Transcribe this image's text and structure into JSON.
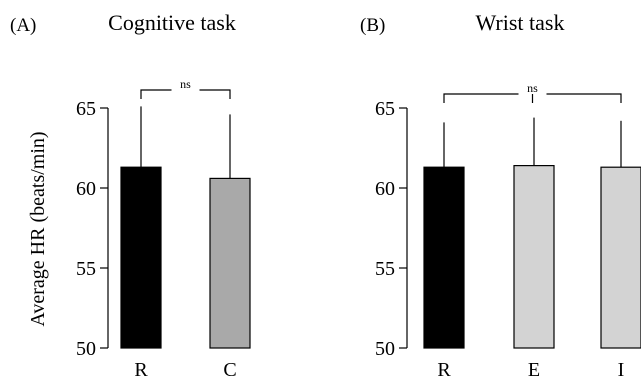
{
  "ylabel": "Average HR (beats/min)",
  "panels": [
    {
      "panel_label": "(A)",
      "title": "Cognitive task",
      "significance": "ns"
    },
    {
      "panel_label": "(B)",
      "title": "Wrist task",
      "significance": "ns"
    }
  ],
  "chart_data": [
    {
      "type": "bar",
      "title": "Cognitive task",
      "ylabel": "Average HR (beats/min)",
      "ylim": [
        50,
        65
      ],
      "yticks": [
        50,
        55,
        60,
        65
      ],
      "categories": [
        "R",
        "C"
      ],
      "values": [
        61.3,
        60.6
      ],
      "error_upper": [
        65.1,
        64.6
      ],
      "bar_colors": [
        "#000000",
        "#a9a9a9"
      ],
      "significance": [
        {
          "from": "R",
          "to": "C",
          "label": "ns"
        }
      ],
      "grid": false
    },
    {
      "type": "bar",
      "title": "Wrist task",
      "ylabel": "",
      "ylim": [
        50,
        65
      ],
      "yticks": [
        50,
        55,
        60,
        65
      ],
      "categories": [
        "R",
        "E",
        "I"
      ],
      "values": [
        61.3,
        61.4,
        61.3
      ],
      "error_upper": [
        64.1,
        64.4,
        64.2
      ],
      "bar_colors": [
        "#000000",
        "#d3d3d3",
        "#d3d3d3"
      ],
      "significance": [
        {
          "from": "R",
          "to": "I",
          "label": "ns"
        }
      ],
      "grid": false
    }
  ]
}
